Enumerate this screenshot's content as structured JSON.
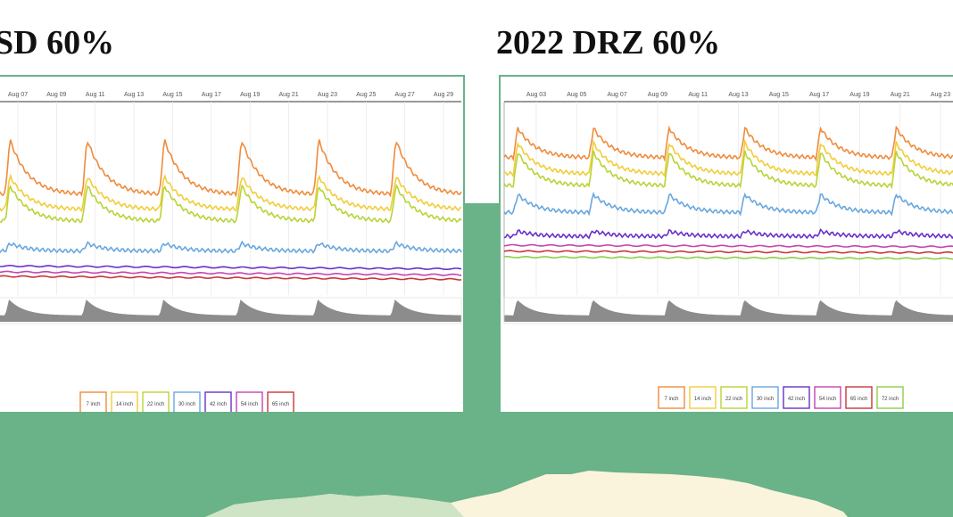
{
  "chart_data": [
    {
      "type": "line",
      "title": "SD 60%",
      "x_ticks": [
        "Aug 07",
        "Aug 09",
        "Aug 11",
        "Aug 13",
        "Aug 15",
        "Aug 17",
        "Aug 19",
        "Aug 21",
        "Aug 23",
        "Aug 25",
        "Aug 27",
        "Aug 29"
      ],
      "cycles": 6,
      "series": [
        {
          "name": "7 inch",
          "color": "#f08b3c",
          "level": 0.5,
          "spike": 0.93
        },
        {
          "name": "14 inch",
          "color": "#f2cd3a",
          "level": 0.4,
          "spike": 0.66
        },
        {
          "name": "22 inch",
          "color": "#b8d437",
          "level": 0.32,
          "spike": 0.6
        },
        {
          "name": "30 inch",
          "color": "#69a7df",
          "level": 0.12,
          "spike": 0.18
        },
        {
          "name": "42 inch",
          "color": "#6930c9",
          "level": 0.02,
          "spike": 0.0
        },
        {
          "name": "54 inch",
          "color": "#c645b1",
          "level": -0.02,
          "spike": 0.0
        },
        {
          "name": "65 inch",
          "color": "#c9363b",
          "level": -0.05,
          "spike": 0.0
        }
      ]
    },
    {
      "type": "line",
      "title": "2022 DRZ 60%",
      "x_ticks": [
        "Aug 03",
        "Aug 05",
        "Aug 07",
        "Aug 09",
        "Aug 11",
        "Aug 13",
        "Aug 15",
        "Aug 17",
        "Aug 19",
        "Aug 21",
        "Aug 23"
      ],
      "cycles": 6,
      "series": [
        {
          "name": "7 inch",
          "color": "#f08b3c",
          "level": 0.75,
          "spike": 0.98
        },
        {
          "name": "14 inch",
          "color": "#f2cd3a",
          "level": 0.64,
          "spike": 0.88
        },
        {
          "name": "22 inch",
          "color": "#b8d437",
          "level": 0.56,
          "spike": 0.82
        },
        {
          "name": "30 inch",
          "color": "#69a7df",
          "level": 0.38,
          "spike": 0.52
        },
        {
          "name": "42 inch",
          "color": "#6930c9",
          "level": 0.22,
          "spike": 0.26
        },
        {
          "name": "54 inch",
          "color": "#c645b1",
          "level": 0.16,
          "spike": 0.0
        },
        {
          "name": "65 inch",
          "color": "#c9363b",
          "level": 0.12,
          "spike": 0.0
        },
        {
          "name": "72 inch",
          "color": "#8ccf46",
          "level": 0.08,
          "spike": 0.0
        }
      ]
    }
  ]
}
